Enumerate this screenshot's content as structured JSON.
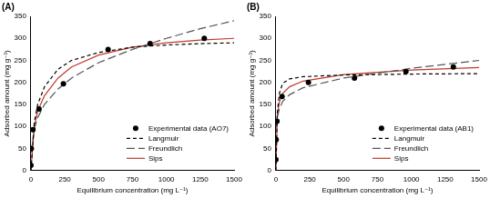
{
  "chart_data": [
    {
      "type": "scatter",
      "title": "(A)",
      "xlabel": "Equilibrium concentration (mg L⁻¹)",
      "ylabel": "Adsorbed amount (mg g⁻¹)",
      "xlim": [
        0,
        1500
      ],
      "xticks": [
        0,
        250,
        500,
        750,
        1000,
        1250,
        1500
      ],
      "ylim": [
        0,
        350
      ],
      "yticks": [
        0,
        50,
        100,
        150,
        200,
        250,
        300,
        350
      ],
      "grid": false,
      "legend": "lower right",
      "series": [
        {
          "name": "Experimental data (AO7)",
          "type": "scatter",
          "marker": "circle",
          "color": "#000000",
          "x": [
            0,
            3,
            15,
            60,
            240,
            570,
            880,
            1280
          ],
          "values": [
            12,
            50,
            93,
            140,
            197,
            275,
            288,
            300
          ]
        },
        {
          "name": "Langmuir",
          "type": "line",
          "line_style": "dashed",
          "color": "#000000",
          "x": [
            0,
            25,
            50,
            100,
            200,
            300,
            500,
            750,
            1000,
            1250,
            1500
          ],
          "values": [
            0,
            110,
            150,
            190,
            230,
            250,
            268,
            280,
            285,
            288,
            290
          ]
        },
        {
          "name": "Freundlich",
          "type": "line",
          "line_style": "longdash",
          "color": "#555555",
          "x": [
            1,
            25,
            50,
            100,
            200,
            300,
            500,
            750,
            1000,
            1250,
            1500
          ],
          "values": [
            40,
            95,
            120,
            150,
            185,
            210,
            245,
            275,
            300,
            322,
            340
          ]
        },
        {
          "name": "Sips",
          "type": "line",
          "line_style": "solid",
          "color": "#c0392b",
          "x": [
            0,
            25,
            50,
            100,
            200,
            300,
            500,
            750,
            1000,
            1250,
            1500
          ],
          "values": [
            0,
            100,
            135,
            170,
            210,
            235,
            262,
            280,
            290,
            296,
            300
          ]
        }
      ]
    },
    {
      "type": "scatter",
      "title": "(B)",
      "xlabel": "Equilibrium concentration (mg L⁻¹)",
      "ylabel": "Adsorbed amount (mg g⁻¹)",
      "xlim": [
        0,
        1500
      ],
      "xticks": [
        0,
        250,
        500,
        750,
        1000,
        1250,
        1500
      ],
      "ylim": [
        0,
        350
      ],
      "yticks": [
        0,
        50,
        100,
        150,
        200,
        250,
        300,
        350
      ],
      "grid": false,
      "legend": "lower right",
      "series": [
        {
          "name": "Experimental data (AB1)",
          "type": "scatter",
          "marker": "circle",
          "color": "#000000",
          "x": [
            0,
            2,
            8,
            45,
            240,
            580,
            960,
            1310
          ],
          "values": [
            25,
            70,
            112,
            168,
            200,
            210,
            225,
            235
          ]
        },
        {
          "name": "Langmuir",
          "type": "line",
          "line_style": "dashed",
          "color": "#000000",
          "x": [
            0,
            10,
            25,
            50,
            100,
            200,
            500,
            1000,
            1500
          ],
          "values": [
            0,
            130,
            175,
            198,
            208,
            213,
            217,
            219,
            220
          ]
        },
        {
          "name": "Freundlich",
          "type": "line",
          "line_style": "longdash",
          "color": "#555555",
          "x": [
            1,
            10,
            25,
            50,
            100,
            200,
            500,
            1000,
            1500
          ],
          "values": [
            95,
            120,
            140,
            157,
            172,
            188,
            210,
            232,
            250
          ]
        },
        {
          "name": "Sips",
          "type": "line",
          "line_style": "solid",
          "color": "#c0392b",
          "x": [
            0,
            10,
            25,
            50,
            100,
            200,
            500,
            1000,
            1500
          ],
          "values": [
            0,
            125,
            155,
            175,
            190,
            203,
            218,
            228,
            234
          ]
        }
      ]
    }
  ]
}
